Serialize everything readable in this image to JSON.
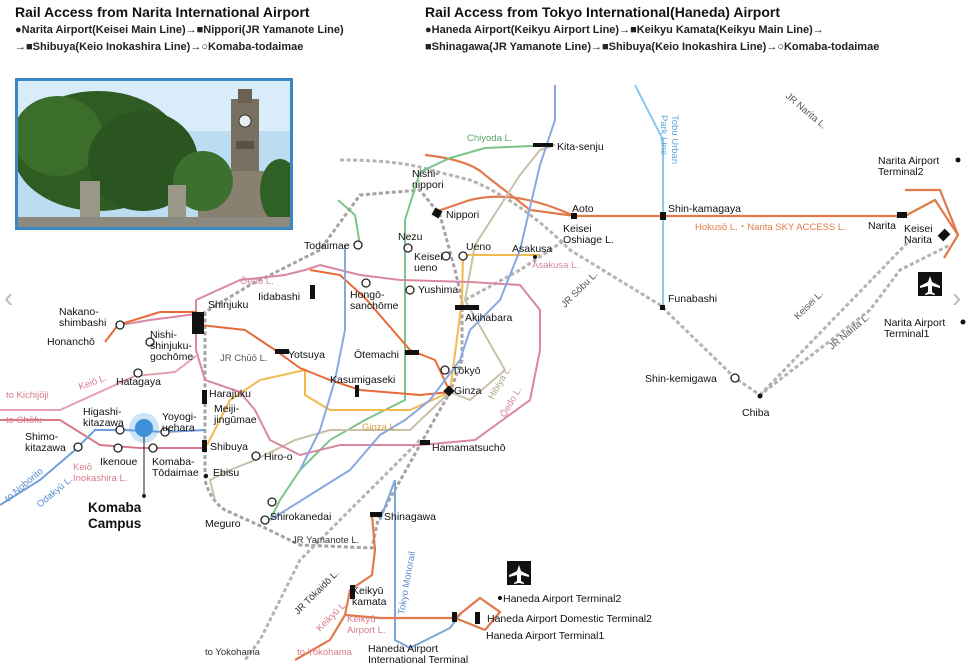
{
  "headers": {
    "narita_title": "Rail Access from Narita International Airport",
    "narita_route_1": "●Narita Airport(Keisei Main Line)→■Nippori(JR Yamanote Line)",
    "narita_route_2": "→■Shibuya(Keio Inokashira Line)→○Komaba-todaimae",
    "haneda_title": "Rail Access from Tokyo International(Haneda) Airport",
    "haneda_route_1": "●Haneda Airport(Keikyu Airport Line)→■Keikyu Kamata(Keikyu Main Line)→",
    "haneda_route_2": "■Shinagawa(JR Yamanote Line)→■Shibuya(Keio Inokashira Line)→○Komaba-todaimae"
  },
  "colors": {
    "yamanote": "#9a9a9a",
    "keisei": "#e07a4a",
    "keio": "#e8a0ae",
    "inokashira": "#d97a8a",
    "chiyoda": "#7cc48c",
    "ginza": "#f2b94e",
    "hibiya": "#c8c0a8",
    "oedo": "#d888a0",
    "chuo": "#e86a3a",
    "namboku": "#8aa8e0",
    "tobu": "#8cc8ee",
    "monorail": "#7aa8d8",
    "odakyu": "#6f9fd8",
    "campus": "#3c8fd8",
    "frame": "#3c86c4"
  },
  "stations": [
    {
      "id": "kita-senju",
      "label": "Kita-senju"
    },
    {
      "id": "nishi-nippori",
      "label": "Nishi-\nnippori"
    },
    {
      "id": "nippori",
      "label": "Nippori"
    },
    {
      "id": "aoto",
      "label": "Aoto"
    },
    {
      "id": "keisei-oshiage",
      "label": "Keisei\nOshiage L."
    },
    {
      "id": "shin-kamagaya",
      "label": "Shin-kamagaya"
    },
    {
      "id": "narita",
      "label": "Narita"
    },
    {
      "id": "keisei-narita",
      "label": "Keisei\nNarita"
    },
    {
      "id": "narita-t2",
      "label": "Narita Airport\nTerminal2"
    },
    {
      "id": "narita-t1",
      "label": "Narita Airport\nTerminal1"
    },
    {
      "id": "todaimae",
      "label": "Todaimae"
    },
    {
      "id": "nezu",
      "label": "Nezu"
    },
    {
      "id": "keisei-ueno",
      "label": "Keisei\nueno"
    },
    {
      "id": "ueno",
      "label": "Ueno"
    },
    {
      "id": "asakusa",
      "label": "Asakusa"
    },
    {
      "id": "iidabashi",
      "label": "Iidabashi"
    },
    {
      "id": "hongo-sanchome",
      "label": "Hongō-\nsanchōme"
    },
    {
      "id": "yushima",
      "label": "Yushima"
    },
    {
      "id": "akihabara",
      "label": "Akihabara"
    },
    {
      "id": "funabashi",
      "label": "Funabashi"
    },
    {
      "id": "shinjuku",
      "label": "Shinjuku"
    },
    {
      "id": "nakano-shimbashi",
      "label": "Nakano-\nshimbashi"
    },
    {
      "id": "honancho",
      "label": "Honanchō"
    },
    {
      "id": "nishi-shinjuku-gochome",
      "label": "Nishi-\nshinjuku-\ngochōme"
    },
    {
      "id": "yotsuya",
      "label": "Yotsuya"
    },
    {
      "id": "otemachi",
      "label": "Ōtemachi"
    },
    {
      "id": "tokyo",
      "label": "Tōkyō"
    },
    {
      "id": "ginza",
      "label": "Ginza"
    },
    {
      "id": "kasumigaseki",
      "label": "Kasumigaseki"
    },
    {
      "id": "hatagaya",
      "label": "Hatagaya"
    },
    {
      "id": "harajuku",
      "label": "Harajuku"
    },
    {
      "id": "meiji-jingumae",
      "label": "Meiji-\njingūmae"
    },
    {
      "id": "higashi-kitazawa",
      "label": "Higashi-\nkitazawa"
    },
    {
      "id": "yoyogi-uehara",
      "label": "Yoyogi-\nuehara"
    },
    {
      "id": "shimo-kitazawa",
      "label": "Shimo-\nkitazawa"
    },
    {
      "id": "ikenoue",
      "label": "Ikenoue"
    },
    {
      "id": "komaba-todaimae",
      "label": "Komaba-\nTōdaimae"
    },
    {
      "id": "shibuya",
      "label": "Shibuya"
    },
    {
      "id": "hiro-o",
      "label": "Hiro-o"
    },
    {
      "id": "ebisu",
      "label": "Ebisu"
    },
    {
      "id": "hamamatsucho",
      "label": "Hamamatsuchō"
    },
    {
      "id": "meguro",
      "label": "Meguro"
    },
    {
      "id": "shirokanedai",
      "label": "Shirokanedai"
    },
    {
      "id": "shinagawa",
      "label": "Shinagawa"
    },
    {
      "id": "shin-kemigawa",
      "label": "Shin-kemigawa"
    },
    {
      "id": "chiba",
      "label": "Chiba"
    },
    {
      "id": "keikyu-kamata",
      "label": "Keikyū\nkamata"
    },
    {
      "id": "haneda-t2",
      "label": "Haneda Airport Terminal2"
    },
    {
      "id": "haneda-domestic-t2",
      "label": "Haneda Airport Domestic Terminal2"
    },
    {
      "id": "haneda-t1",
      "label": "Haneda Airport Terminal1"
    },
    {
      "id": "haneda-intl",
      "label": "Haneda Airport\nInternational Terminal"
    }
  ],
  "line_labels": {
    "chiyoda": "Chiyoda L.",
    "tobu": "Tobu Urban\nPark Line",
    "jr_narita_top": "JR Narita L.",
    "hokuso": "Hokusō L.・Narita SKY ACCESS L.",
    "oedo": "Ōedo L.",
    "asakusa_line": "Asakusa L.",
    "jr_sobu": "JR Sōbu L.",
    "keisei_line": "Keisei L.",
    "jr_narita_bottom": "JR Narita L.",
    "jr_chuo": "JR Chūō L.",
    "keio": "Keiō L.",
    "to_kichijoji": "to Kichijōji",
    "to_chofu": "to Chōfu",
    "keio_inokashira": "Keiō\nInokashira L.",
    "to_noborito": "to Noborito",
    "odakyu": "Odakyū L.",
    "hibiya": "Hibiya L.",
    "oedo_right": "Ōedo L.",
    "ginza_line": "Ginza L.",
    "jr_yamanote": "JR Yamanote L.",
    "tokyo_monorail": "Tokyo Monorail",
    "jr_tokaido": "JR Tōkaidō L.",
    "keikyu_line": "Keikyū L.",
    "keikyu_airport": "Keikyū\nAirport L.",
    "to_yokohama_1": "to Yokohama",
    "to_yokohama_2": "to Yokohama"
  },
  "campus": {
    "label": "Komaba\nCampus"
  },
  "icons": {
    "airport": "airplane-icon",
    "photo": "university-clocktower-photo"
  }
}
